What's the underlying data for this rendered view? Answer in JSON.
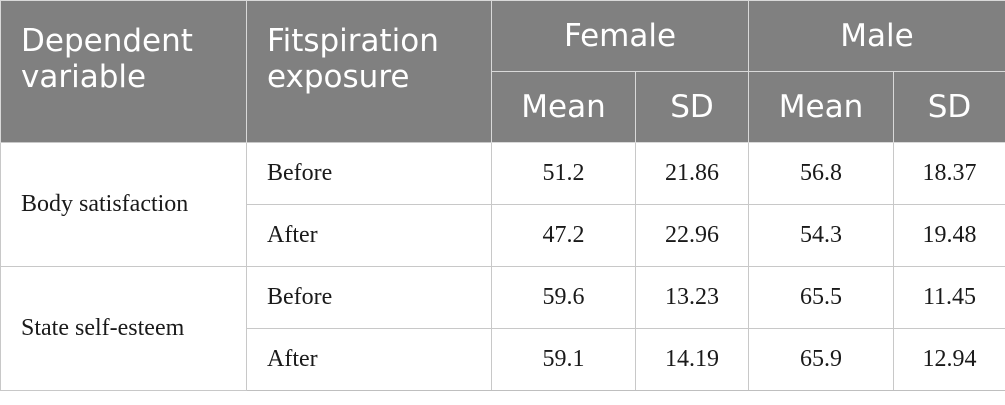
{
  "header": {
    "col1": [
      "Dependent",
      "variable"
    ],
    "col2": [
      "Fitspiration",
      "exposure"
    ],
    "groups": [
      "Female",
      "Male"
    ],
    "stats": [
      "Mean",
      "SD",
      "Mean",
      "SD"
    ]
  },
  "rows": [
    {
      "variable": "Body satisfaction",
      "entries": [
        {
          "exposure": "Before",
          "values": [
            "51.2",
            "21.86",
            "56.8",
            "18.37"
          ]
        },
        {
          "exposure": "After",
          "values": [
            "47.2",
            "22.96",
            "54.3",
            "19.48"
          ]
        }
      ]
    },
    {
      "variable": "State self-esteem",
      "entries": [
        {
          "exposure": "Before",
          "values": [
            "59.6",
            "13.23",
            "65.5",
            "11.45"
          ]
        },
        {
          "exposure": "After",
          "values": [
            "59.1",
            "14.19",
            "65.9",
            "12.94"
          ]
        }
      ]
    }
  ]
}
